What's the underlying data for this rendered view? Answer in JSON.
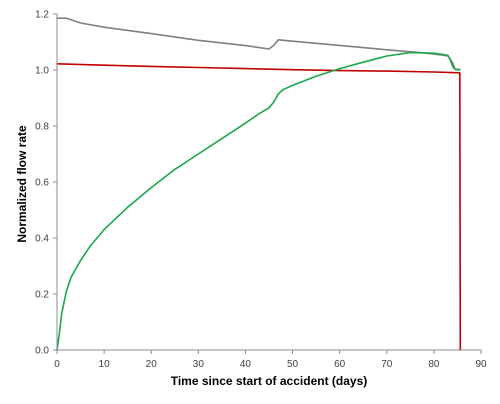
{
  "chart_data": {
    "type": "line",
    "title": "",
    "xlabel": "Time since start of accident (days)",
    "ylabel": "Normalized flow rate",
    "xlim": [
      0,
      90
    ],
    "ylim": [
      0,
      1.2
    ],
    "xticks": [
      0,
      10,
      20,
      30,
      40,
      50,
      60,
      70,
      80,
      90
    ],
    "yticks": [
      0.0,
      0.2,
      0.4,
      0.6,
      0.8,
      1.0,
      1.2
    ],
    "ytick_labels": [
      "0.0",
      "0.2",
      "0.4",
      "0.6",
      "0.8",
      "1.0",
      "1.2"
    ],
    "grid": false,
    "legend": "none",
    "series": [
      {
        "color": "#808080",
        "points": [
          [
            0,
            1.185
          ],
          [
            2,
            1.185
          ],
          [
            5,
            1.168
          ],
          [
            10,
            1.153
          ],
          [
            20,
            1.13
          ],
          [
            30,
            1.106
          ],
          [
            40,
            1.087
          ],
          [
            45,
            1.075
          ],
          [
            46,
            1.088
          ],
          [
            47,
            1.108
          ],
          [
            50,
            1.103
          ],
          [
            60,
            1.088
          ],
          [
            70,
            1.072
          ],
          [
            78,
            1.061
          ],
          [
            82,
            1.053
          ],
          [
            83,
            1.05
          ],
          [
            84,
            1.025
          ],
          [
            84.5,
            1.003
          ],
          [
            85.5,
            1.002
          ]
        ]
      },
      {
        "color": "#c00000",
        "points": [
          [
            0,
            1.022
          ],
          [
            10,
            1.017
          ],
          [
            20,
            1.013
          ],
          [
            30,
            1.009
          ],
          [
            40,
            1.005
          ],
          [
            50,
            1.001
          ],
          [
            60,
            0.998
          ],
          [
            70,
            0.996
          ],
          [
            80,
            0.993
          ],
          [
            85.5,
            0.99
          ],
          [
            85.6,
            0.0
          ]
        ]
      },
      {
        "color": "#1ba84a",
        "points": [
          [
            0,
            0.0
          ],
          [
            0.5,
            0.06
          ],
          [
            1,
            0.13
          ],
          [
            2,
            0.21
          ],
          [
            3,
            0.26
          ],
          [
            5,
            0.32
          ],
          [
            7,
            0.37
          ],
          [
            10,
            0.43
          ],
          [
            15,
            0.51
          ],
          [
            20,
            0.58
          ],
          [
            25,
            0.645
          ],
          [
            30,
            0.7
          ],
          [
            35,
            0.755
          ],
          [
            40,
            0.81
          ],
          [
            43,
            0.845
          ],
          [
            45,
            0.865
          ],
          [
            46,
            0.885
          ],
          [
            47,
            0.915
          ],
          [
            48,
            0.93
          ],
          [
            50,
            0.945
          ],
          [
            55,
            0.978
          ],
          [
            60,
            1.005
          ],
          [
            65,
            1.028
          ],
          [
            70,
            1.05
          ],
          [
            75,
            1.062
          ],
          [
            80,
            1.06
          ],
          [
            82,
            1.055
          ],
          [
            83,
            1.052
          ],
          [
            83.5,
            1.035
          ],
          [
            84,
            1.012
          ],
          [
            84.5,
            1.002
          ],
          [
            85.5,
            1.0
          ]
        ]
      }
    ]
  }
}
